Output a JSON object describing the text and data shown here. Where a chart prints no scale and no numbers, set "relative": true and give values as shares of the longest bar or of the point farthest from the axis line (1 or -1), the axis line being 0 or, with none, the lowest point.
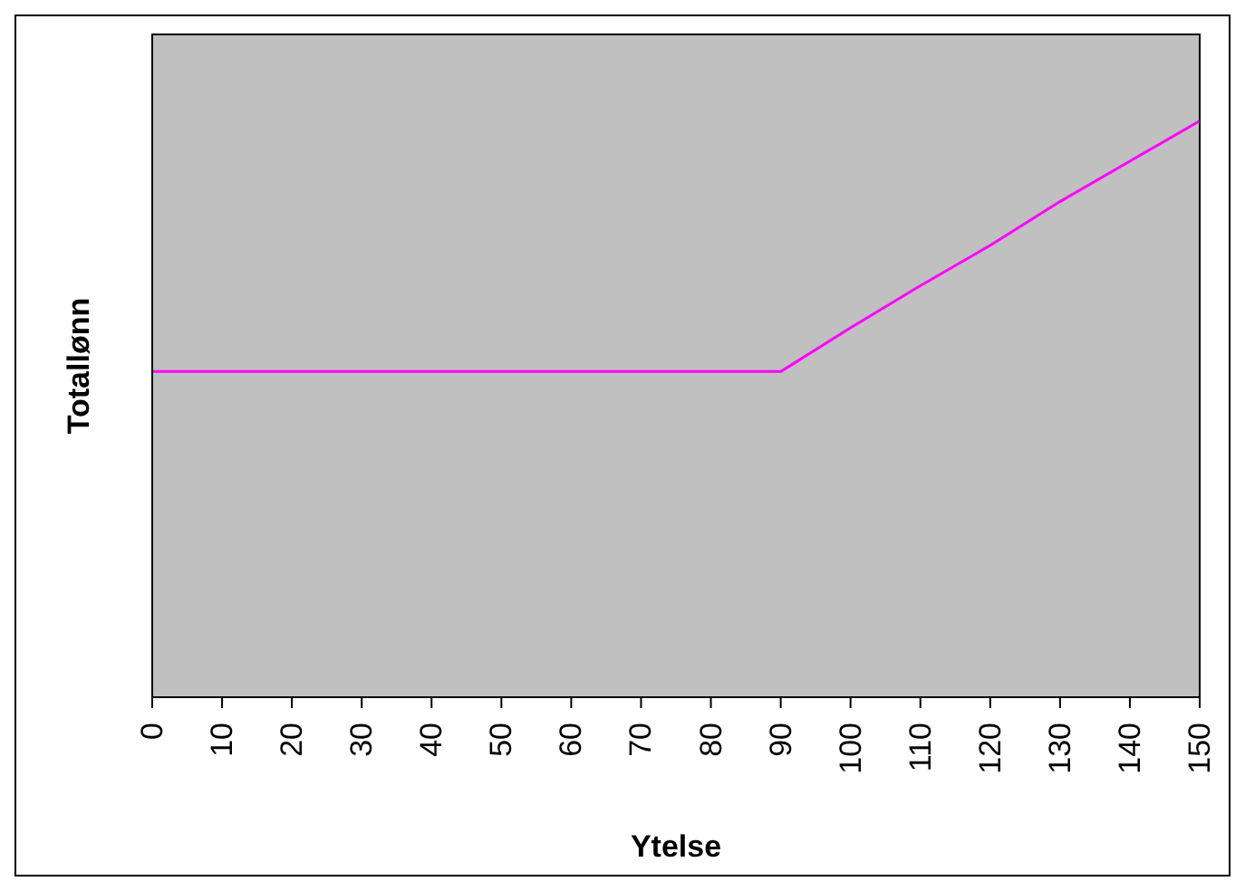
{
  "chart_data": {
    "type": "line",
    "xlabel": "Ytelse",
    "ylabel": "Totallønn",
    "relative": true,
    "x": [
      0,
      10,
      20,
      30,
      40,
      50,
      60,
      70,
      80,
      90,
      100,
      110,
      120,
      130,
      140,
      150
    ],
    "values": [
      0.565,
      0.565,
      0.565,
      0.565,
      0.565,
      0.565,
      0.565,
      0.565,
      0.565,
      0.565,
      0.641,
      0.714,
      0.784,
      0.86,
      0.93,
      1
    ],
    "color": "#ff00ff",
    "xlim": [
      0,
      150
    ],
    "xticks": [
      0,
      10,
      20,
      30,
      40,
      50,
      60,
      70,
      80,
      90,
      100,
      110,
      120,
      130,
      140,
      150
    ],
    "grid": false,
    "legend": false,
    "marker": "none",
    "line_style": "solid"
  }
}
